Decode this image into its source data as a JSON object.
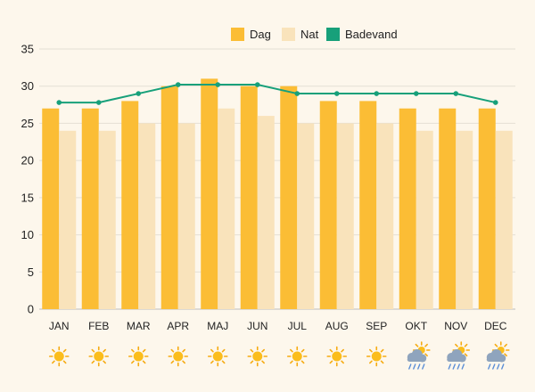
{
  "chart_data": {
    "type": "bar",
    "categories": [
      "JAN",
      "FEB",
      "MAR",
      "APR",
      "MAJ",
      "JUN",
      "JUL",
      "AUG",
      "SEP",
      "OKT",
      "NOV",
      "DEC"
    ],
    "series": [
      {
        "name": "Dag",
        "kind": "bar",
        "color": "#fbbd35",
        "values": [
          27,
          27,
          28,
          30,
          31,
          30,
          30,
          28,
          28,
          27,
          27,
          27
        ]
      },
      {
        "name": "Nat",
        "kind": "bar",
        "color": "#f9e3bb",
        "values": [
          24,
          24,
          25,
          25,
          27,
          26,
          25,
          25,
          25,
          24,
          24,
          24
        ]
      },
      {
        "name": "Badevand",
        "kind": "line",
        "color": "#17a07a",
        "values": [
          27.8,
          27.8,
          29,
          30.2,
          30.2,
          30.2,
          29,
          29,
          29,
          29,
          29,
          27.8
        ]
      }
    ],
    "ylim": [
      0,
      35
    ],
    "yticks": [
      0,
      5,
      10,
      15,
      20,
      25,
      30,
      35
    ],
    "grid": true,
    "legend_position": "top-center",
    "weather_icons": [
      "sun-icon",
      "sun-icon",
      "sun-icon",
      "sun-icon",
      "sun-icon",
      "sun-icon",
      "sun-icon",
      "sun-icon",
      "sun-icon",
      "rain-cloud-sun-icon",
      "rain-cloud-sun-icon",
      "rain-cloud-sun-icon"
    ]
  }
}
